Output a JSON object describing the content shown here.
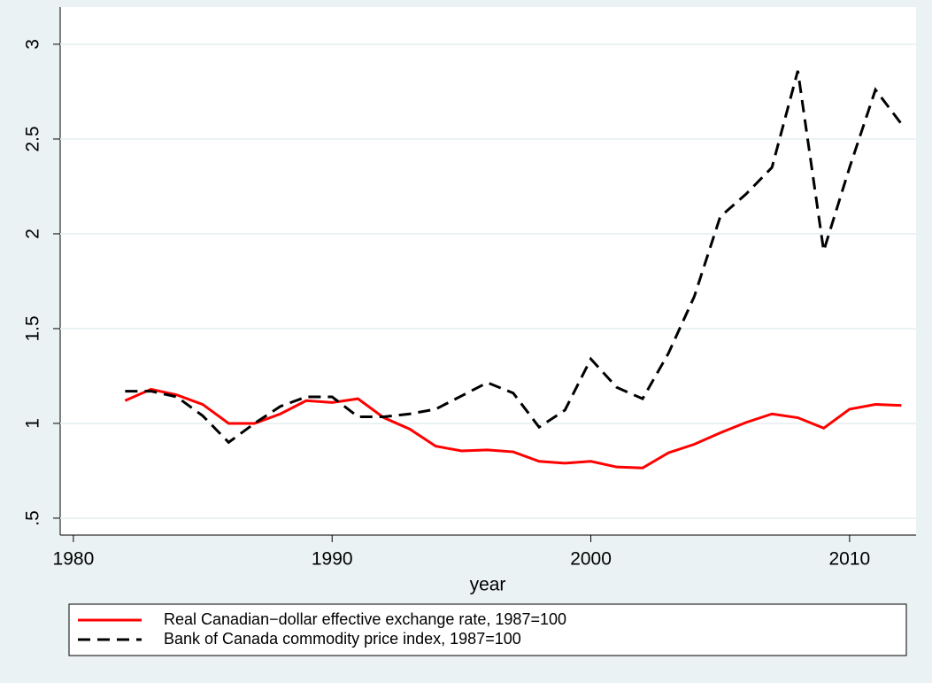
{
  "chart_data": {
    "type": "line",
    "x_label": "year",
    "x": [
      1982,
      1983,
      1984,
      1985,
      1986,
      1987,
      1988,
      1989,
      1990,
      1991,
      1992,
      1993,
      1994,
      1995,
      1996,
      1997,
      1998,
      1999,
      2000,
      2001,
      2002,
      2003,
      2004,
      2005,
      2006,
      2007,
      2008,
      2009,
      2010,
      2011,
      2012
    ],
    "series": [
      {
        "name": "Real Canadian−dollar effective exchange rate, 1987=100",
        "color": "#ff0000",
        "dash": "solid",
        "values": [
          1.12,
          1.18,
          1.15,
          1.1,
          1.0,
          1.0,
          1.05,
          1.12,
          1.11,
          1.13,
          1.03,
          0.97,
          0.88,
          0.855,
          0.86,
          0.85,
          0.8,
          0.79,
          0.8,
          0.77,
          0.765,
          0.845,
          0.89,
          0.95,
          1.005,
          1.05,
          1.03,
          0.975,
          1.075,
          1.1,
          1.095
        ]
      },
      {
        "name": "Bank of Canada commodity price index, 1987=100",
        "color": "#000000",
        "dash": "dashed",
        "values": [
          1.17,
          1.17,
          1.14,
          1.04,
          0.9,
          1.0,
          1.09,
          1.14,
          1.14,
          1.035,
          1.035,
          1.05,
          1.075,
          1.145,
          1.215,
          1.16,
          0.98,
          1.07,
          1.34,
          1.19,
          1.13,
          1.37,
          1.67,
          2.09,
          2.21,
          2.35,
          2.86,
          1.91,
          2.35,
          2.76,
          2.58
        ]
      }
    ],
    "xlim": [
      1979.49,
      2012.57
    ],
    "xticks": [
      1980,
      1990,
      2000,
      2010
    ],
    "ylim": [
      0.411,
      3.196
    ],
    "yticks": [
      {
        "value": 0.5,
        "label": ".5"
      },
      1,
      1.5,
      2,
      2.5,
      3
    ],
    "grid": true,
    "legend": "bottom"
  }
}
